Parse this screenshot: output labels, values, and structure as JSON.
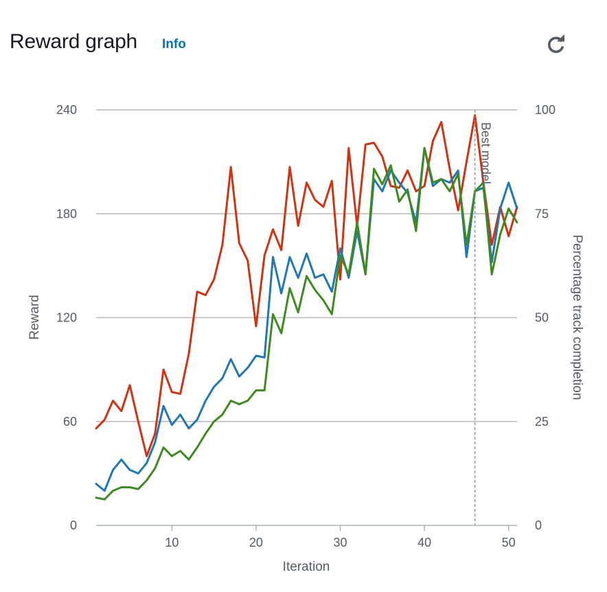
{
  "header": {
    "title": "Reward graph",
    "info_label": "Info"
  },
  "chart_data": {
    "type": "line",
    "title": "Reward graph",
    "xlabel": "Iteration",
    "ylabel": "Reward",
    "y2label": "Percentage track completion",
    "xlim": [
      1,
      51
    ],
    "ylim": [
      0,
      240
    ],
    "y2lim": [
      0,
      100
    ],
    "xticks": [
      10,
      20,
      30,
      40,
      50
    ],
    "yticks": [
      0,
      60,
      120,
      180,
      240
    ],
    "y2ticks": [
      0,
      25,
      50,
      75,
      100
    ],
    "grid": true,
    "annotations": [
      {
        "type": "vline",
        "x": 46,
        "label": "Best model"
      }
    ],
    "x": [
      1,
      2,
      3,
      4,
      5,
      6,
      7,
      8,
      9,
      10,
      11,
      12,
      13,
      14,
      15,
      16,
      17,
      18,
      19,
      20,
      21,
      22,
      23,
      24,
      25,
      26,
      27,
      28,
      29,
      30,
      31,
      32,
      33,
      34,
      35,
      36,
      37,
      38,
      39,
      40,
      41,
      42,
      43,
      44,
      45,
      46,
      47,
      48,
      49,
      50,
      51
    ],
    "series": [
      {
        "color": "#d13212",
        "axis": "left",
        "values": [
          56,
          61,
          72,
          66,
          81,
          60,
          40,
          53,
          90,
          77,
          76,
          99,
          135,
          133,
          142,
          162,
          207,
          163,
          153,
          115,
          156,
          171,
          159,
          207,
          173,
          198,
          188,
          184,
          199,
          142,
          218,
          173,
          220,
          221,
          213,
          196,
          195,
          205,
          193,
          196,
          222,
          233,
          206,
          182,
          210,
          237,
          198,
          162,
          184,
          167,
          184
        ]
      },
      {
        "color": "#1f77b4",
        "axis": "left",
        "values": [
          24,
          20,
          32,
          38,
          32,
          30,
          36,
          48,
          69,
          58,
          64,
          56,
          61,
          72,
          80,
          85,
          96,
          86,
          91,
          98,
          97,
          155,
          134,
          155,
          143,
          157,
          143,
          145,
          135,
          160,
          143,
          170,
          145,
          200,
          193,
          205,
          198,
          192,
          175,
          218,
          196,
          200,
          198,
          205,
          155,
          193,
          195,
          152,
          183,
          198,
          183
        ]
      },
      {
        "color": "#3d8b1f",
        "axis": "left",
        "values": [
          16,
          15,
          20,
          22,
          22,
          21,
          26,
          33,
          45,
          40,
          43,
          38,
          45,
          53,
          60,
          64,
          72,
          70,
          72,
          78,
          78,
          122,
          111,
          137,
          123,
          144,
          136,
          130,
          122,
          156,
          145,
          175,
          145,
          206,
          197,
          208,
          187,
          194,
          170,
          218,
          198,
          200,
          193,
          203,
          162,
          193,
          198,
          145,
          168,
          183,
          175
        ]
      }
    ]
  }
}
